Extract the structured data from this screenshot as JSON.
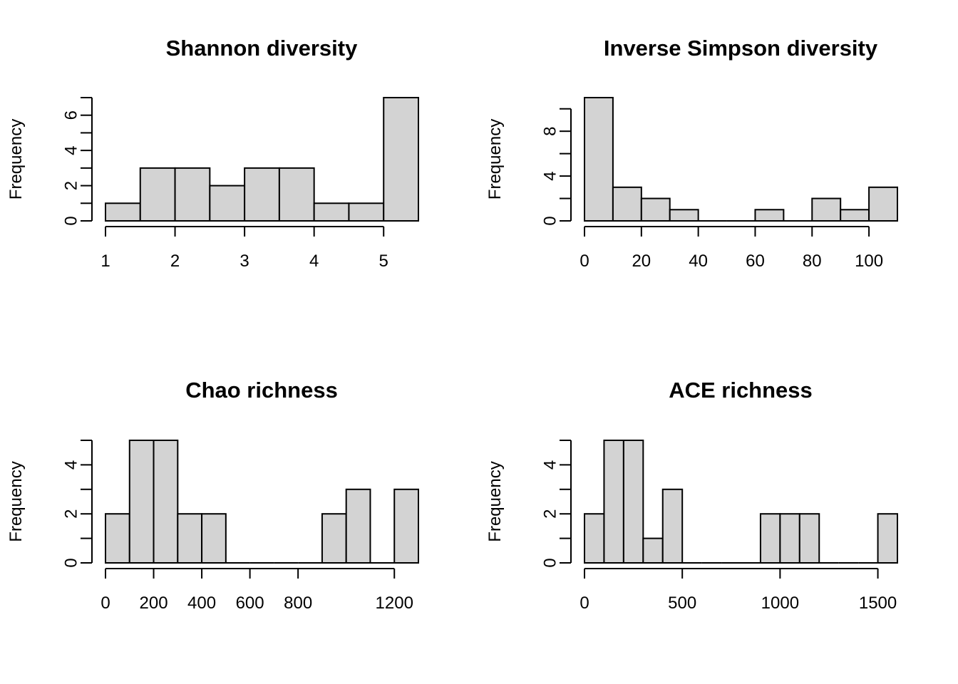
{
  "chart_data": [
    {
      "type": "bar",
      "title": "Shannon diversity",
      "xlabel": "",
      "ylabel": "Frequency",
      "bin_edges": [
        1,
        1.5,
        2,
        2.5,
        3,
        3.5,
        4,
        4.5,
        5,
        5.5
      ],
      "values": [
        1,
        3,
        3,
        2,
        3,
        3,
        1,
        1,
        7
      ],
      "x_ticks": [
        1,
        2,
        3,
        4,
        5
      ],
      "y_ticks_minor": [
        0,
        1,
        2,
        3,
        4,
        5,
        6,
        7
      ],
      "y_tick_labels": [
        0,
        2,
        4,
        6
      ],
      "xlim": [
        1,
        5.5
      ],
      "ylim": [
        0,
        7
      ]
    },
    {
      "type": "bar",
      "title": "Inverse Simpson diversity",
      "xlabel": "",
      "ylabel": "Frequency",
      "bin_edges": [
        0,
        10,
        20,
        30,
        40,
        50,
        60,
        70,
        80,
        90,
        100,
        110
      ],
      "values": [
        11,
        3,
        2,
        1,
        0,
        0,
        1,
        0,
        2,
        1,
        3
      ],
      "x_ticks": [
        0,
        20,
        40,
        60,
        80,
        100
      ],
      "y_ticks_minor": [
        0,
        2,
        4,
        6,
        8,
        10
      ],
      "y_tick_labels": [
        0,
        4,
        8
      ],
      "xlim": [
        0,
        110
      ],
      "ylim": [
        0,
        11
      ]
    },
    {
      "type": "bar",
      "title": "Chao richness",
      "xlabel": "",
      "ylabel": "Frequency",
      "bin_edges": [
        0,
        100,
        200,
        300,
        400,
        500,
        600,
        700,
        800,
        900,
        1000,
        1100,
        1200,
        1300
      ],
      "values": [
        2,
        5,
        5,
        2,
        2,
        0,
        0,
        0,
        0,
        2,
        3,
        0,
        3
      ],
      "x_ticks": [
        0,
        200,
        400,
        600,
        800,
        1200
      ],
      "y_ticks_minor": [
        0,
        1,
        2,
        3,
        4,
        5
      ],
      "y_tick_labels": [
        0,
        2,
        4
      ],
      "xlim": [
        0,
        1300
      ],
      "ylim": [
        0,
        5
      ]
    },
    {
      "type": "bar",
      "title": "ACE richness",
      "xlabel": "",
      "ylabel": "Frequency",
      "bin_edges": [
        0,
        100,
        200,
        300,
        400,
        500,
        600,
        700,
        800,
        900,
        1000,
        1100,
        1200,
        1300,
        1400,
        1500,
        1600
      ],
      "values": [
        2,
        5,
        5,
        1,
        3,
        0,
        0,
        0,
        0,
        2,
        2,
        2,
        0,
        0,
        0,
        2
      ],
      "x_ticks": [
        0,
        500,
        1000,
        1500
      ],
      "y_ticks_minor": [
        0,
        1,
        2,
        3,
        4,
        5
      ],
      "y_tick_labels": [
        0,
        2,
        4
      ],
      "xlim": [
        0,
        1600
      ],
      "ylim": [
        0,
        5
      ]
    }
  ]
}
